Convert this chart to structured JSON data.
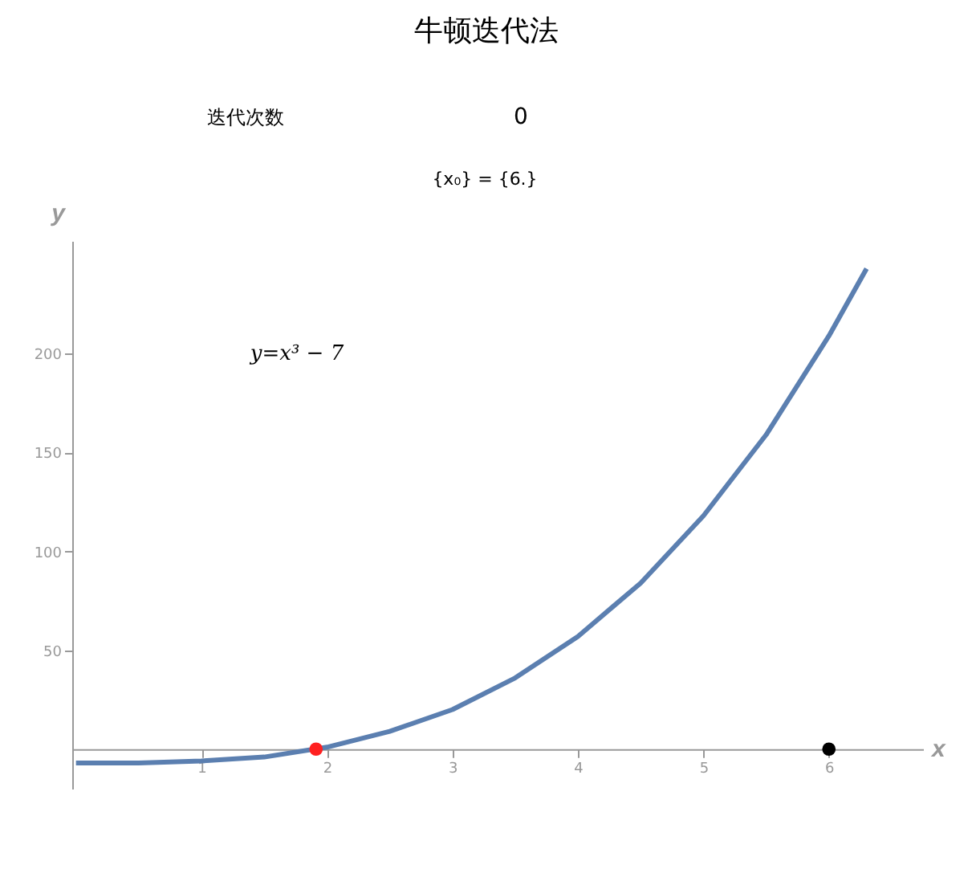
{
  "chart_data": {
    "type": "line",
    "title": "牛顿迭代法",
    "xlabel": "x",
    "ylabel": "y",
    "annotations": [
      "迭代次数",
      "0",
      "{x₀} = {6.}",
      "y=x³ − 7"
    ],
    "xlim": [
      -0.03,
      6.75
    ],
    "ylim": [
      -20,
      257
    ],
    "xticks": [
      1,
      2,
      3,
      4,
      5,
      6
    ],
    "yticks": [
      50,
      100,
      150,
      200
    ],
    "grid": false,
    "marker": "none",
    "line_style": "solid",
    "series": [
      {
        "color": "#5b7fb0",
        "x": [
          0,
          0.5,
          1,
          1.5,
          2,
          2.5,
          3,
          3.5,
          4,
          4.5,
          5,
          5.5,
          6,
          6.3
        ],
        "values": [
          -7,
          -7,
          -6,
          -4,
          1,
          9,
          20,
          36,
          57,
          84,
          118,
          159,
          209,
          243
        ]
      },
      {
        "type": "scatter",
        "marker": "circle",
        "color": "#ff2020",
        "x": [
          1.913
        ],
        "values": [
          0
        ]
      },
      {
        "type": "scatter",
        "marker": "circle",
        "color": "#000000",
        "x": [
          6
        ],
        "values": [
          0
        ]
      }
    ]
  }
}
